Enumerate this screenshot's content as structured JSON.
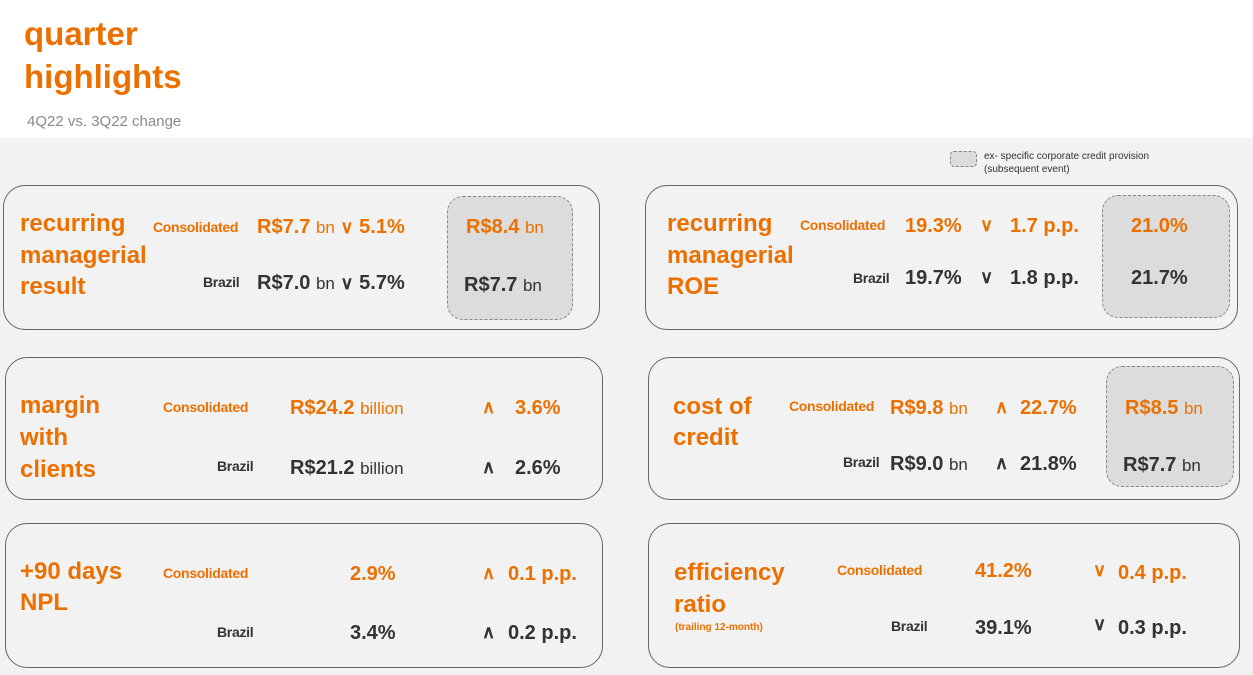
{
  "header": {
    "title_line1": "quarter",
    "title_line2": "highlights",
    "subtitle": "4Q22 vs. 3Q22 change"
  },
  "legend": {
    "line1": "ex- specific corporate credit provision",
    "line2": "(subsequent event)"
  },
  "colors": {
    "accent": "#ec7000",
    "dark": "#333333"
  },
  "labels": {
    "consolidated": "Consolidated",
    "brazil": "Brazil"
  },
  "cards": {
    "rmr": {
      "title": [
        "recurring",
        "managerial",
        "result"
      ],
      "cons_value": "R$7.7",
      "cons_unit": "bn",
      "cons_arrow": "down",
      "cons_change": "5.1%",
      "br_value": "R$7.0",
      "br_unit": "bn",
      "br_arrow": "down",
      "br_change": "5.7%",
      "ex_cons_value": "R$8.4",
      "ex_cons_unit": "bn",
      "ex_br_value": "R$7.7",
      "ex_br_unit": "bn"
    },
    "roe": {
      "title": [
        "recurring",
        "managerial",
        "ROE"
      ],
      "cons_value": "19.3%",
      "cons_arrow": "down",
      "cons_change": "1.7 p.p.",
      "br_value": "19.7%",
      "br_arrow": "down",
      "br_change": "1.8 p.p.",
      "ex_cons_value": "21.0%",
      "ex_br_value": "21.7%"
    },
    "margin": {
      "title": [
        "margin",
        "with",
        "clients"
      ],
      "cons_value": "R$24.2",
      "cons_unit": "billion",
      "cons_arrow": "up",
      "cons_change": "3.6%",
      "br_value": "R$21.2",
      "br_unit": "billion",
      "br_arrow": "up",
      "br_change": "2.6%"
    },
    "coc": {
      "title": [
        "cost of",
        "credit"
      ],
      "cons_value": "R$9.8",
      "cons_unit": "bn",
      "cons_arrow": "up",
      "cons_change": "22.7%",
      "br_value": "R$9.0",
      "br_unit": "bn",
      "br_arrow": "up",
      "br_change": "21.8%",
      "ex_cons_value": "R$8.5",
      "ex_cons_unit": "bn",
      "ex_br_value": "R$7.7",
      "ex_br_unit": "bn"
    },
    "npl": {
      "title": [
        "+90 days",
        "NPL"
      ],
      "cons_value": "2.9%",
      "cons_arrow": "up",
      "cons_change": "0.1 p.p.",
      "br_value": "3.4%",
      "br_arrow": "up",
      "br_change": "0.2 p.p."
    },
    "eff": {
      "title": [
        "efficiency",
        "ratio"
      ],
      "note": "(trailing 12-month)",
      "cons_value": "41.2%",
      "cons_arrow": "down",
      "cons_change": "0.4 p.p.",
      "br_value": "39.1%",
      "br_arrow": "down",
      "br_change": "0.3 p.p."
    }
  }
}
